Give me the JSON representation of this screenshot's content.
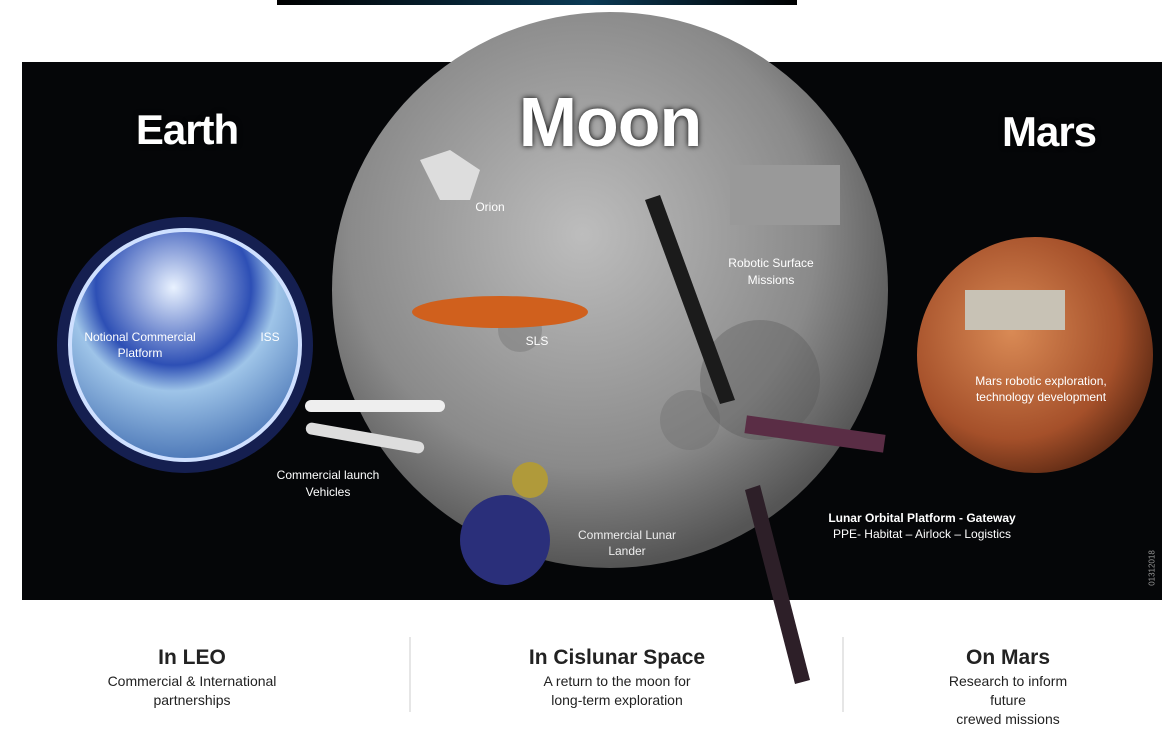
{
  "headings": {
    "earth": "Earth",
    "moon": "Moon",
    "mars": "Mars"
  },
  "labels": {
    "orion": [
      "Orion"
    ],
    "robotic": [
      "Robotic Surface",
      "Missions"
    ],
    "platform": [
      "Notional Commercial",
      "Platform"
    ],
    "iss": [
      "ISS"
    ],
    "sls": [
      "SLS"
    ],
    "mars_robotic": [
      "Mars robotic exploration,",
      "technology development"
    ],
    "launch": [
      "Commercial launch",
      "Vehicles"
    ],
    "lander": [
      "Commercial Lunar",
      "Lander"
    ],
    "gateway_title": [
      "Lunar Orbital Platform - Gateway"
    ],
    "gateway_parts": [
      "PPE- Habitat – Airlock – Logistics"
    ],
    "code": [
      "01312018"
    ]
  },
  "columns": [
    {
      "title": "In LEO",
      "lines": [
        "Commercial & International",
        "partnerships"
      ]
    },
    {
      "title": "In Cislunar Space",
      "lines": [
        "A return to the moon for",
        "long-term exploration"
      ]
    },
    {
      "title": "On Mars",
      "lines": [
        "Research to inform future",
        "crewed missions"
      ]
    }
  ]
}
